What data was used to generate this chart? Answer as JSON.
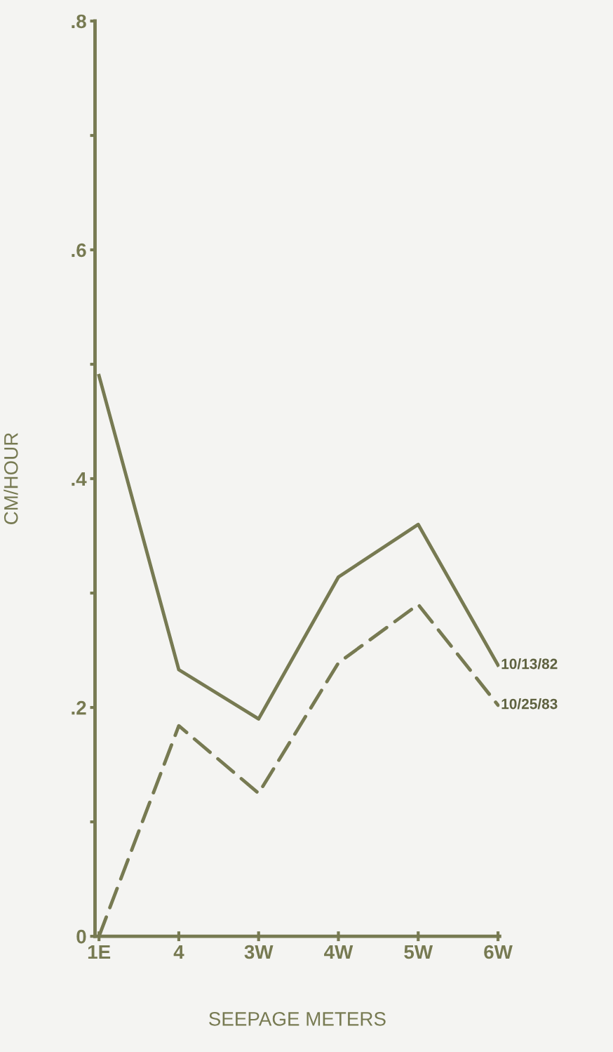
{
  "chart_data": {
    "type": "line",
    "xlabel": "SEEPAGE METERS",
    "ylabel": "CM/HOUR",
    "categories": [
      "1E",
      "4",
      "3W",
      "4W",
      "5W",
      "6W"
    ],
    "series": [
      {
        "name": "10/13/82",
        "color": "#777a52",
        "line_style": "solid",
        "values": [
          0.49,
          0.233,
          0.19,
          0.314,
          0.36,
          0.237
        ]
      },
      {
        "name": "10/25/83",
        "color": "#777a52",
        "line_style": "dashed",
        "values": [
          0,
          0.184,
          0.125,
          0.239,
          0.29,
          0.202
        ]
      }
    ],
    "ylim": [
      0,
      0.8
    ],
    "yticks": [
      {
        "value": 0,
        "label": "0"
      },
      {
        "value": 0.1,
        "label": null
      },
      {
        "value": 0.2,
        "label": ".2"
      },
      {
        "value": 0.3,
        "label": null
      },
      {
        "value": 0.4,
        "label": ".4"
      },
      {
        "value": 0.5,
        "label": null
      },
      {
        "value": 0.6,
        "label": ".6"
      },
      {
        "value": 0.7,
        "label": null
      },
      {
        "value": 0.8,
        "label": ".8"
      }
    ],
    "grid": false,
    "legend": false,
    "marker": "none"
  }
}
